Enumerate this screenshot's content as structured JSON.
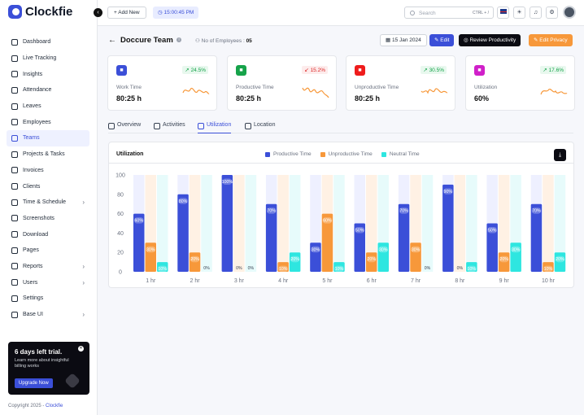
{
  "app": {
    "name": "Clockfie"
  },
  "sidebar": {
    "items": [
      {
        "label": "Dashboard",
        "has_children": false,
        "active": false
      },
      {
        "label": "Live Tracking",
        "has_children": false,
        "active": false
      },
      {
        "label": "Insights",
        "has_children": false,
        "active": false
      },
      {
        "label": "Attendance",
        "has_children": false,
        "active": false
      },
      {
        "label": "Leaves",
        "has_children": false,
        "active": false
      },
      {
        "label": "Employees",
        "has_children": false,
        "active": false
      },
      {
        "label": "Teams",
        "has_children": false,
        "active": true
      },
      {
        "label": "Projects & Tasks",
        "has_children": false,
        "active": false
      },
      {
        "label": "Invoices",
        "has_children": false,
        "active": false
      },
      {
        "label": "Clients",
        "has_children": false,
        "active": false
      },
      {
        "label": "Time & Schedule",
        "has_children": true,
        "active": false
      },
      {
        "label": "Screenshots",
        "has_children": false,
        "active": false
      },
      {
        "label": "Download",
        "has_children": false,
        "active": false
      },
      {
        "label": "Pages",
        "has_children": false,
        "active": false
      },
      {
        "label": "Reports",
        "has_children": true,
        "active": false
      },
      {
        "label": "Users",
        "has_children": true,
        "active": false
      },
      {
        "label": "Settings",
        "has_children": false,
        "active": false
      },
      {
        "label": "Base UI",
        "has_children": true,
        "active": false
      }
    ],
    "trial": {
      "title": "6 days left trial.",
      "text": "Learn more about insightful billing works",
      "button": "Upgrade Now"
    },
    "footer": {
      "copyright": "Copyright 2025 - ",
      "brand": "Clockfie"
    }
  },
  "topbar": {
    "add_new": "+ Add New",
    "timer": "15:00:45 PM",
    "search_placeholder": "Search",
    "search_shortcut": "CTRL + /"
  },
  "header": {
    "title": "Doccure Team",
    "employees_label": "No of Employees : ",
    "employees_count": "05",
    "date": "15 Jan 2024",
    "edit": "Edit",
    "review": "Review Productivity",
    "privacy": "Edit Privacy"
  },
  "stats": [
    {
      "label": "Work Time",
      "value": "80:25 h",
      "change": "24.5%",
      "trend": "up",
      "icon_color": "#3b4fd8",
      "icon": "briefcase-icon"
    },
    {
      "label": "Productive Time",
      "value": "80:25 h",
      "change": "15.2%",
      "trend": "down",
      "icon_color": "#16a34a",
      "icon": "bolt-icon"
    },
    {
      "label": "Unproductive Time",
      "value": "80:25 h",
      "change": "30.5%",
      "trend": "up",
      "icon_color": "#ef1c1c",
      "icon": "pulse-icon"
    },
    {
      "label": "Utilization",
      "value": "60%",
      "change": "17.6%",
      "trend": "up",
      "icon_color": "#d020c9",
      "icon": "clock-icon"
    }
  ],
  "tabs": [
    {
      "label": "Overview",
      "active": false
    },
    {
      "label": "Activities",
      "active": false
    },
    {
      "label": "Utilization",
      "active": true
    },
    {
      "label": "Location",
      "active": false
    }
  ],
  "colors": {
    "productive": "#3b4fd8",
    "unproductive": "#f7983a",
    "neutral": "#2ee6e0",
    "accent": "#3b4fd8"
  },
  "chart_data": {
    "type": "bar",
    "title": "Utilization",
    "categories": [
      "1 hr",
      "2 hr",
      "3 hr",
      "4 hr",
      "5 hr",
      "6 hr",
      "7 hr",
      "8 hr",
      "9 hr",
      "10 hr"
    ],
    "ylim": [
      0,
      100
    ],
    "yticks": [
      0,
      20,
      40,
      60,
      80,
      100
    ],
    "series": [
      {
        "name": "Productive Time",
        "values": [
          60,
          80,
          100,
          70,
          30,
          50,
          70,
          90,
          50,
          70
        ],
        "labels": [
          "60%",
          "80%",
          "100%",
          "70%",
          "30%",
          "50%",
          "70%",
          "90%",
          "50%",
          "70%"
        ]
      },
      {
        "name": "Unproductive Time",
        "values": [
          30,
          20,
          0,
          10,
          60,
          20,
          30,
          0,
          20,
          10
        ],
        "labels": [
          "30%",
          "20%",
          "0%",
          "10%",
          "60%",
          "20%",
          "30%",
          "0%",
          "20%",
          "10%"
        ]
      },
      {
        "name": "Neutral Time",
        "values": [
          10,
          0,
          0,
          20,
          10,
          30,
          0,
          10,
          30,
          20
        ],
        "labels": [
          "10%",
          "0%",
          "0%",
          "20%",
          "10%",
          "30%",
          "0%",
          "10%",
          "30%",
          "20%"
        ]
      }
    ],
    "legend_position": "top-center",
    "grid": false
  }
}
